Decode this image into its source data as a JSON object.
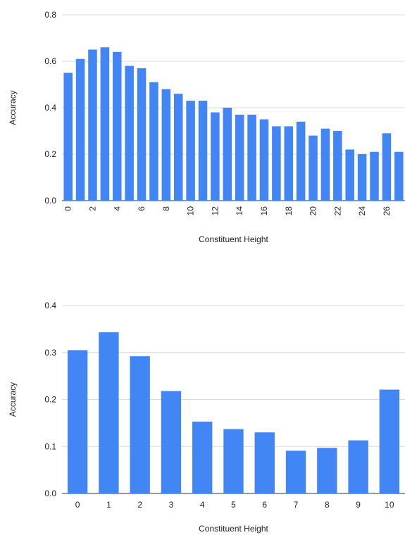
{
  "colors": {
    "bar": "#4285f4",
    "grid": "#d9d9d9",
    "text": "#222222"
  },
  "chart_data": [
    {
      "type": "bar",
      "categories": [
        "0",
        "1",
        "2",
        "3",
        "4",
        "5",
        "6",
        "7",
        "8",
        "9",
        "10",
        "11",
        "12",
        "13",
        "14",
        "15",
        "16",
        "17",
        "18",
        "19",
        "20",
        "21",
        "22",
        "23",
        "24",
        "25",
        "26",
        "27"
      ],
      "tick_labels": [
        "0",
        "2",
        "4",
        "6",
        "8",
        "10",
        "12",
        "14",
        "16",
        "18",
        "20",
        "22",
        "24",
        "26"
      ],
      "values": [
        0.55,
        0.61,
        0.65,
        0.66,
        0.64,
        0.58,
        0.57,
        0.51,
        0.48,
        0.46,
        0.43,
        0.43,
        0.38,
        0.4,
        0.37,
        0.37,
        0.35,
        0.32,
        0.32,
        0.34,
        0.28,
        0.31,
        0.3,
        0.22,
        0.2,
        0.21,
        0.29,
        0.21
      ],
      "yticks": [
        "0.0",
        "0.2",
        "0.4",
        "0.6",
        "0.8"
      ],
      "ylim": [
        0,
        0.8
      ],
      "xlabel": "Constituent Height",
      "ylabel": "Accuracy",
      "grid": true,
      "x_tick_rotation": "vertical"
    },
    {
      "type": "bar",
      "categories": [
        "0",
        "1",
        "2",
        "3",
        "4",
        "5",
        "6",
        "7",
        "8",
        "9",
        "10"
      ],
      "tick_labels": [
        "0",
        "1",
        "2",
        "3",
        "4",
        "5",
        "6",
        "7",
        "8",
        "9",
        "10"
      ],
      "values": [
        0.305,
        0.343,
        0.292,
        0.218,
        0.153,
        0.137,
        0.13,
        0.091,
        0.097,
        0.113,
        0.221
      ],
      "yticks": [
        "0.0",
        "0.1",
        "0.2",
        "0.3",
        "0.4"
      ],
      "ylim": [
        0,
        0.4
      ],
      "xlabel": "Constituent Height",
      "ylabel": "Accuracy",
      "grid": true,
      "x_tick_rotation": "horizontal"
    }
  ]
}
